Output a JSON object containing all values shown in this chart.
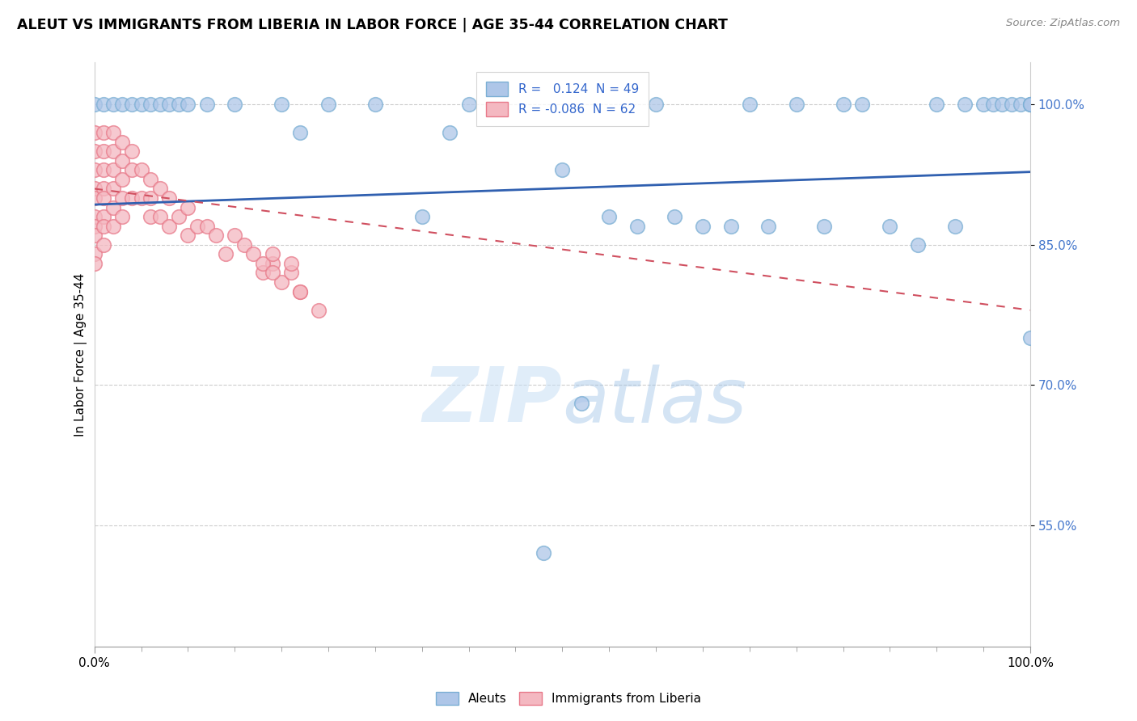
{
  "title": "ALEUT VS IMMIGRANTS FROM LIBERIA IN LABOR FORCE | AGE 35-44 CORRELATION CHART",
  "source": "Source: ZipAtlas.com",
  "ylabel": "In Labor Force | Age 35-44",
  "x_min": 0.0,
  "x_max": 1.0,
  "y_min": 0.42,
  "y_max": 1.045,
  "y_ticks": [
    0.55,
    0.7,
    0.85,
    1.0
  ],
  "y_tick_labels": [
    "55.0%",
    "70.0%",
    "85.0%",
    "100.0%"
  ],
  "aleuts_color": "#7bafd4",
  "aleuts_fill": "#aec6e8",
  "liberia_color": "#e87a8a",
  "liberia_fill": "#f4b8c1",
  "watermark_zip": "ZIP",
  "watermark_atlas": "atlas",
  "aleuts_x": [
    0.0,
    0.01,
    0.02,
    0.03,
    0.04,
    0.05,
    0.06,
    0.07,
    0.08,
    0.09,
    0.1,
    0.12,
    0.15,
    0.2,
    0.22,
    0.25,
    0.3,
    0.35,
    0.38,
    0.4,
    0.48,
    0.5,
    0.52,
    0.55,
    0.58,
    0.6,
    0.62,
    0.65,
    0.68,
    0.7,
    0.72,
    0.75,
    0.78,
    0.8,
    0.82,
    0.85,
    0.88,
    0.9,
    0.92,
    0.93,
    0.95,
    0.96,
    0.97,
    0.98,
    0.99,
    1.0,
    1.0,
    1.0,
    1.0
  ],
  "aleuts_y": [
    1.0,
    1.0,
    1.0,
    1.0,
    1.0,
    1.0,
    1.0,
    1.0,
    1.0,
    1.0,
    1.0,
    1.0,
    1.0,
    1.0,
    0.97,
    1.0,
    1.0,
    0.88,
    0.97,
    1.0,
    0.52,
    0.93,
    0.68,
    0.88,
    0.87,
    1.0,
    0.88,
    0.87,
    0.87,
    1.0,
    0.87,
    1.0,
    0.87,
    1.0,
    1.0,
    0.87,
    0.85,
    1.0,
    0.87,
    1.0,
    1.0,
    1.0,
    1.0,
    1.0,
    1.0,
    1.0,
    1.0,
    1.0,
    0.75
  ],
  "liberia_x": [
    0.0,
    0.0,
    0.0,
    0.0,
    0.0,
    0.0,
    0.0,
    0.0,
    0.0,
    0.0,
    0.01,
    0.01,
    0.01,
    0.01,
    0.01,
    0.01,
    0.01,
    0.01,
    0.02,
    0.02,
    0.02,
    0.02,
    0.02,
    0.02,
    0.03,
    0.03,
    0.03,
    0.03,
    0.03,
    0.04,
    0.04,
    0.04,
    0.05,
    0.05,
    0.06,
    0.06,
    0.06,
    0.07,
    0.07,
    0.08,
    0.08,
    0.09,
    0.1,
    0.1,
    0.11,
    0.12,
    0.13,
    0.14,
    0.15,
    0.16,
    0.17,
    0.18,
    0.19,
    0.2,
    0.21,
    0.22,
    0.18,
    0.19,
    0.22,
    0.24,
    0.19,
    0.21
  ],
  "liberia_y": [
    0.97,
    0.95,
    0.93,
    0.91,
    0.9,
    0.88,
    0.87,
    0.86,
    0.84,
    0.83,
    0.97,
    0.95,
    0.93,
    0.91,
    0.9,
    0.88,
    0.87,
    0.85,
    0.97,
    0.95,
    0.93,
    0.91,
    0.89,
    0.87,
    0.96,
    0.94,
    0.92,
    0.9,
    0.88,
    0.95,
    0.93,
    0.9,
    0.93,
    0.9,
    0.92,
    0.9,
    0.88,
    0.91,
    0.88,
    0.9,
    0.87,
    0.88,
    0.89,
    0.86,
    0.87,
    0.87,
    0.86,
    0.84,
    0.86,
    0.85,
    0.84,
    0.82,
    0.83,
    0.81,
    0.82,
    0.8,
    0.83,
    0.82,
    0.8,
    0.78,
    0.84,
    0.83
  ],
  "blue_line_start_y": 0.893,
  "blue_line_end_y": 0.928,
  "pink_line_start_y": 0.91,
  "pink_line_end_y": 0.78
}
